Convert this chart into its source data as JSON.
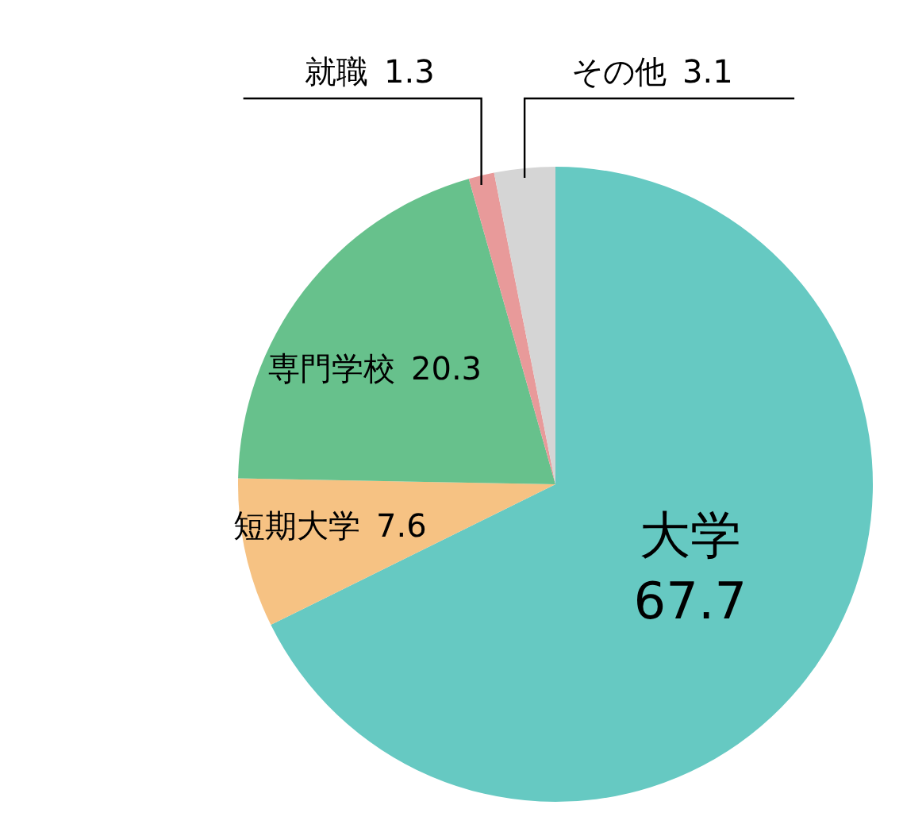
{
  "chart_data": {
    "type": "pie",
    "categories": [
      "大学",
      "短期大学",
      "専門学校",
      "就職",
      "その他"
    ],
    "values": [
      67.7,
      7.6,
      20.3,
      1.3,
      3.1
    ],
    "colors": [
      "#66c9c2",
      "#f6c283",
      "#67c18c",
      "#e89a9a",
      "#d5d5d5"
    ],
    "data_labels": true,
    "legend": false
  }
}
